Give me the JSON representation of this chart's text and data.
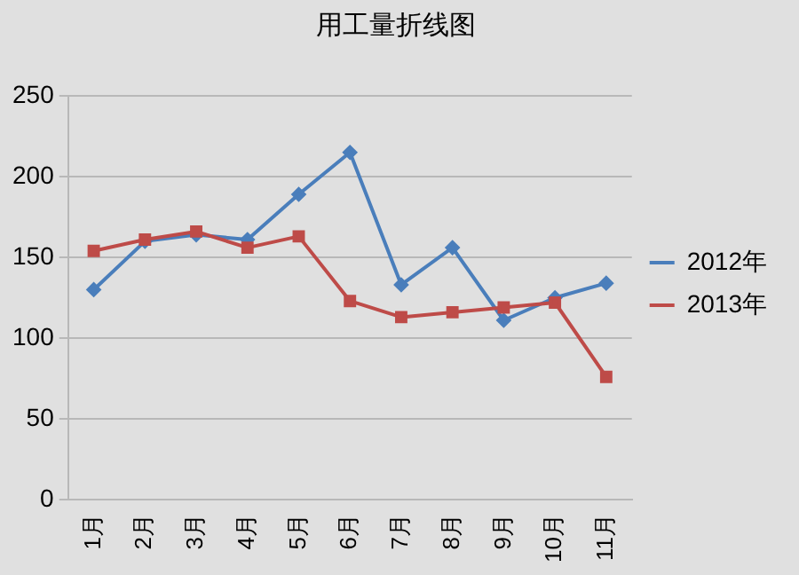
{
  "chart_data": {
    "type": "line",
    "title": "用工量折线图",
    "categories": [
      "1月",
      "2月",
      "3月",
      "4月",
      "5月",
      "6月",
      "7月",
      "8月",
      "9月",
      "10月",
      "11月"
    ],
    "series": [
      {
        "name": "2012年",
        "color": "#4a7ebb",
        "marker": "diamond",
        "values": [
          130,
          160,
          164,
          161,
          189,
          215,
          133,
          156,
          111,
          125,
          134
        ]
      },
      {
        "name": "2013年",
        "color": "#be4b48",
        "marker": "square",
        "values": [
          154,
          161,
          166,
          156,
          163,
          123,
          113,
          116,
          119,
          122,
          76
        ]
      }
    ],
    "ylim": [
      0,
      250
    ],
    "yticks": [
      0,
      50,
      100,
      150,
      200,
      250
    ],
    "grid": "y",
    "legend": "right"
  }
}
